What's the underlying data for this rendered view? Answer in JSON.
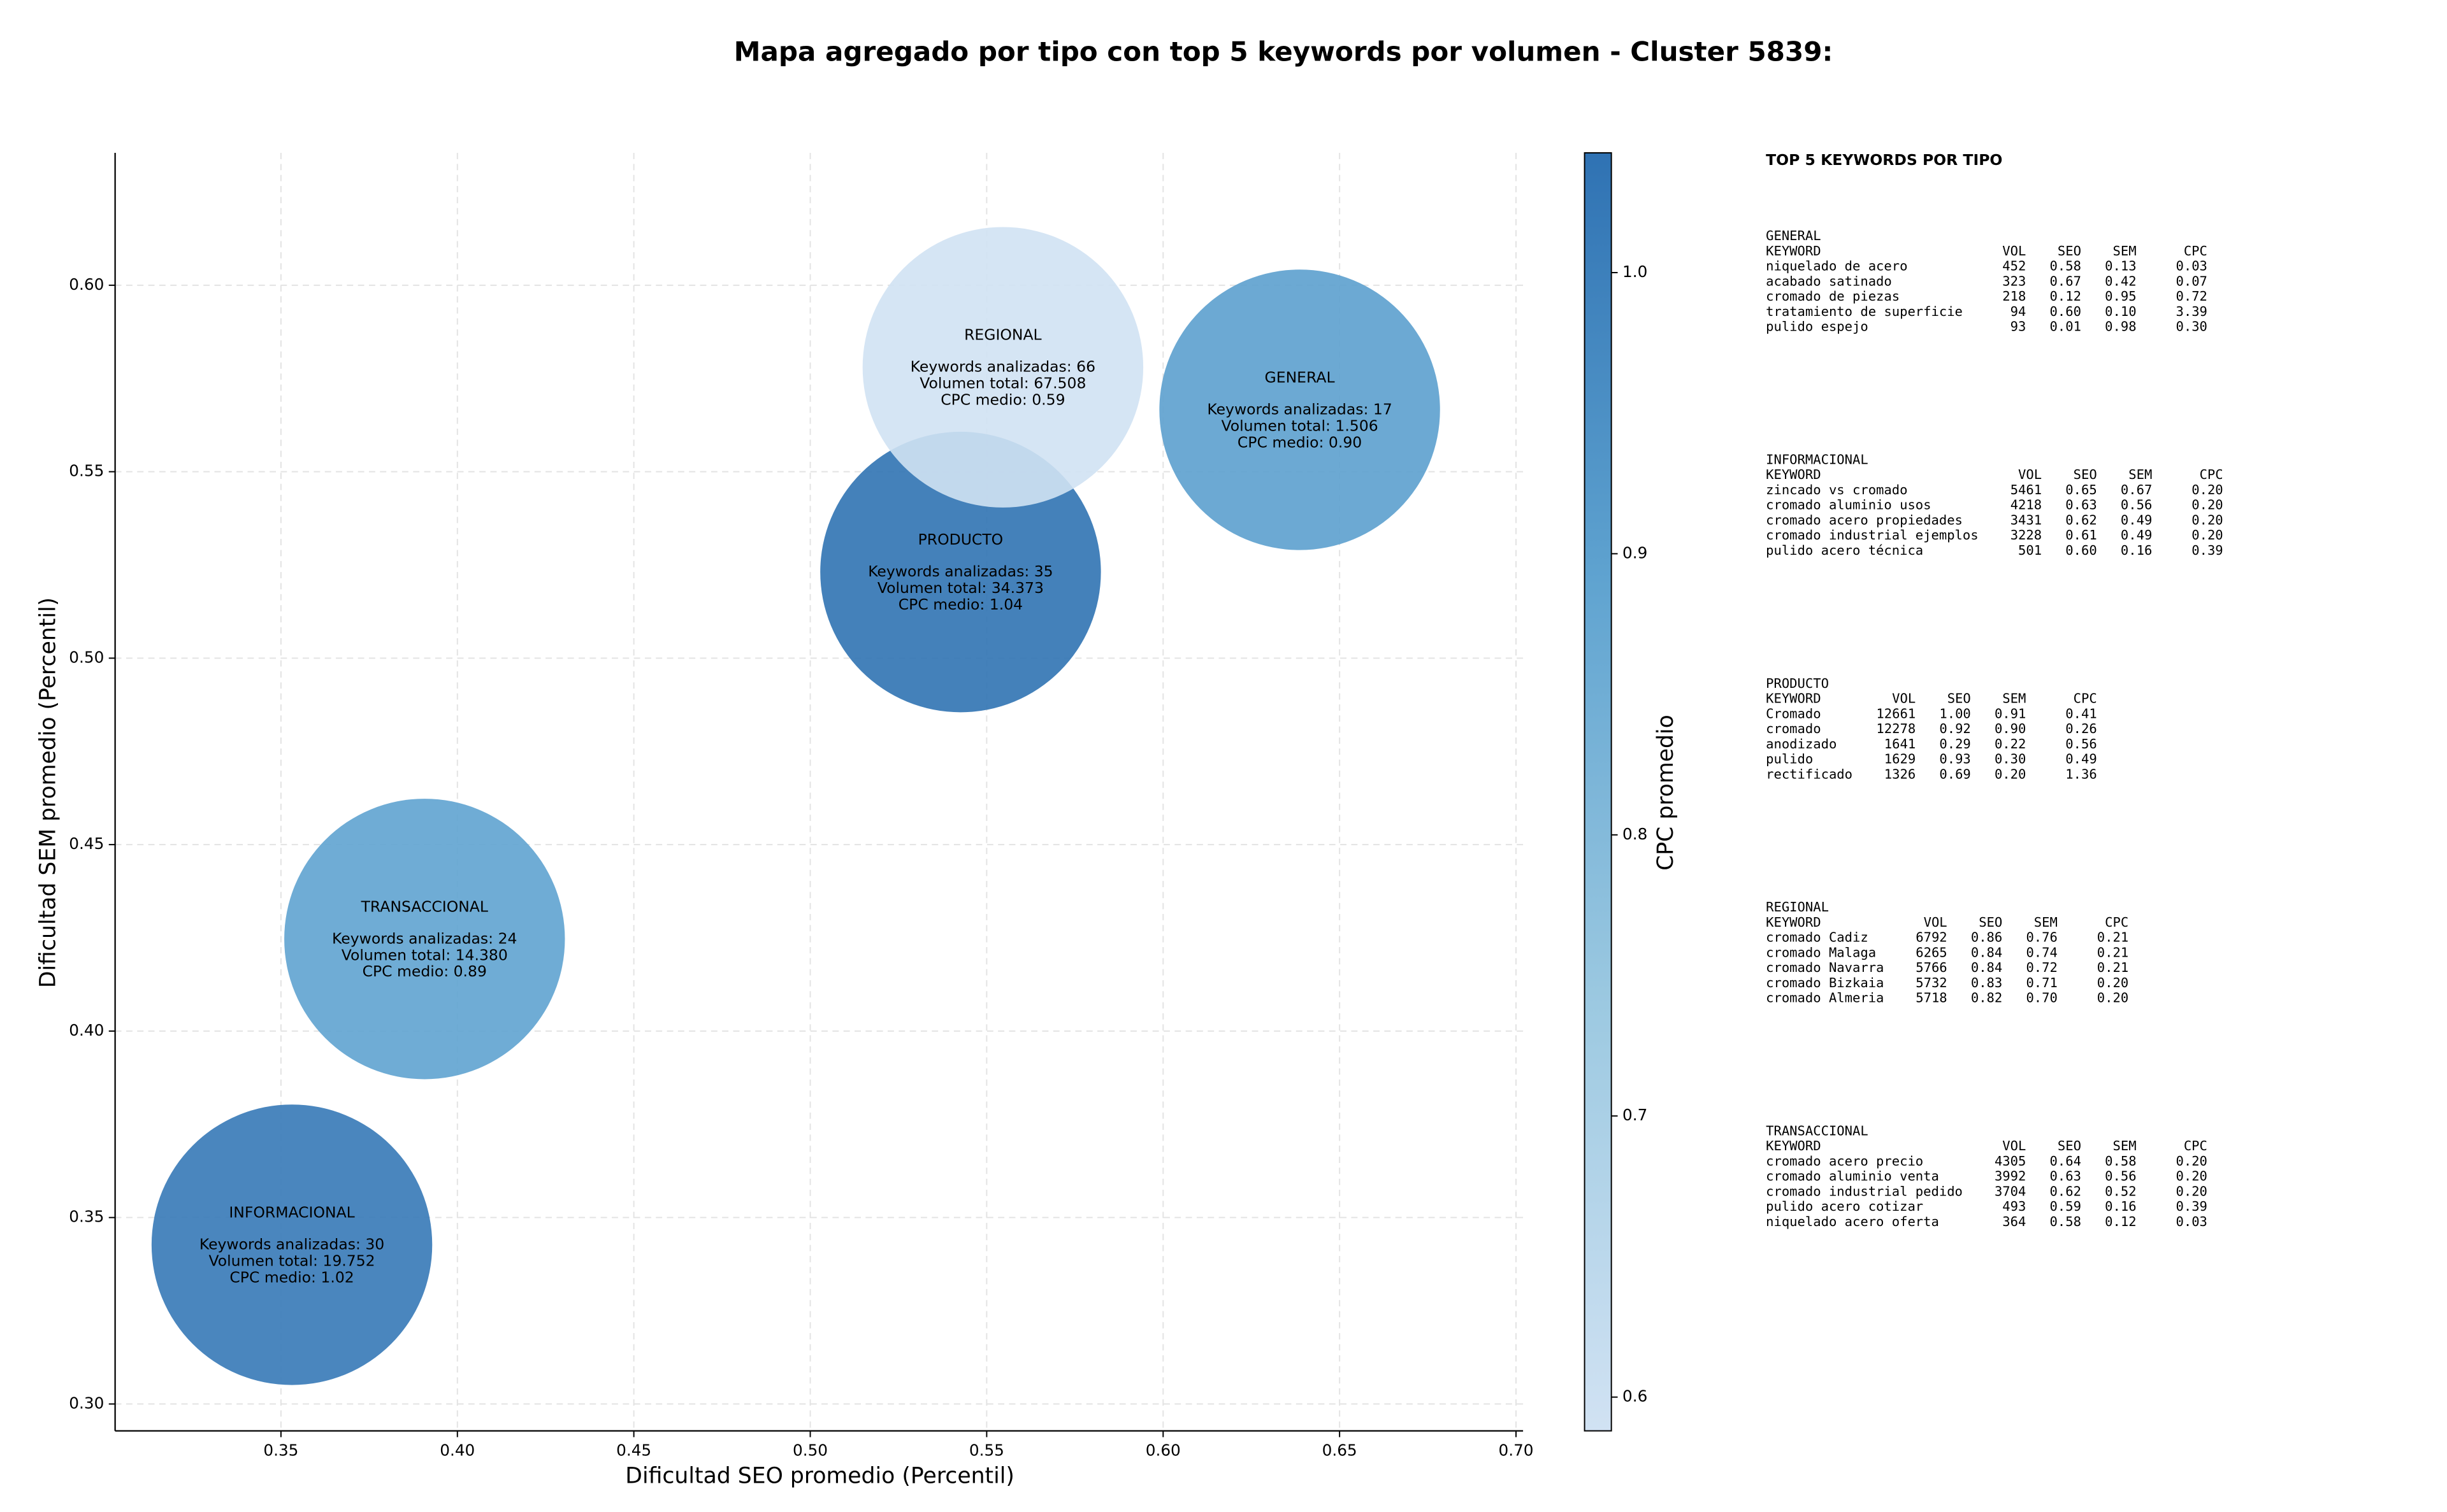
{
  "chart_data": {
    "type": "bubble",
    "title": "Mapa agregado por tipo con top 5 keywords por volumen - Cluster 5839:",
    "x_label": "Dificultad SEO promedio (Percentil)",
    "y_label": "Dificultad SEM promedio (Percentil)",
    "colorbar_label": "CPC promedio",
    "categories": [
      "GENERAL",
      "INFORMACIONAL",
      "PRODUCTO",
      "REGIONAL",
      "TRANSACCIONAL"
    ],
    "x": [
      0.6387,
      0.3531,
      0.5426,
      0.5546,
      0.3907
    ],
    "y": [
      0.5666,
      0.3427,
      0.5231,
      0.578,
      0.4247
    ],
    "keywords_prefix": "Keywords analizadas: ",
    "keywords": [
      17,
      30,
      35,
      66,
      24
    ],
    "volume_prefix": "Volumen total: ",
    "volumes": [
      1506,
      19752,
      34373,
      67508,
      14380
    ],
    "volume_labels": [
      "1.506",
      "19.752",
      "34.373",
      "67.508",
      "14.380"
    ],
    "cpc_prefix": "CPC medio: ",
    "color_values": [
      0.9,
      1.02,
      1.04,
      0.59,
      0.89
    ],
    "color_value_labels": [
      "0.90",
      "1.02",
      "1.04",
      "0.59",
      "0.89"
    ],
    "colormap": [
      "#d1e2f3",
      "#9cc9e1",
      "#5fa3d0",
      "#2f72b3"
    ],
    "xlim": [
      0.303,
      0.702
    ],
    "ylim": [
      0.2928,
      0.6355
    ],
    "clim": [
      0.588,
      1.0426
    ],
    "xticks": [
      0.35,
      {
        "value": 0.4,
        "label": "0.40"
      },
      0.45,
      {
        "value": 0.5,
        "label": "0.50"
      },
      0.55,
      {
        "value": 0.6,
        "label": "0.60"
      },
      0.65,
      {
        "value": 0.7,
        "label": "0.70"
      }
    ],
    "yticks": [
      {
        "value": 0.3,
        "label": "0.30"
      },
      0.35,
      {
        "value": 0.4,
        "label": "0.40"
      },
      0.45,
      {
        "value": 0.5,
        "label": "0.50"
      },
      0.55,
      {
        "value": 0.6,
        "label": "0.60"
      }
    ],
    "cticks": [
      0.6,
      0.7,
      0.8,
      0.9,
      {
        "value": 1,
        "label": "1.0"
      }
    ],
    "grid": true
  },
  "side_panel": {
    "title": "TOP 5 KEYWORDS POR TIPO",
    "columns": [
      "KEYWORD",
      "VOL",
      "SEO",
      "SEM",
      "CPC"
    ],
    "groups": [
      {
        "name": "GENERAL",
        "rows": [
          [
            "niquelado de acero",
            "452",
            "0.58",
            "0.13",
            "0.03"
          ],
          [
            "acabado satinado",
            "323",
            "0.67",
            "0.42",
            "0.07"
          ],
          [
            "cromado de piezas",
            "218",
            "0.12",
            "0.95",
            "0.72"
          ],
          [
            "tratamiento de superficie",
            "94",
            "0.60",
            "0.10",
            "3.39"
          ],
          [
            "pulido espejo",
            "93",
            "0.01",
            "0.98",
            "0.30"
          ]
        ]
      },
      {
        "name": "INFORMACIONAL",
        "rows": [
          [
            "zincado vs cromado",
            "5461",
            "0.65",
            "0.67",
            "0.20"
          ],
          [
            "cromado aluminio usos",
            "4218",
            "0.63",
            "0.56",
            "0.20"
          ],
          [
            "cromado acero propiedades",
            "3431",
            "0.62",
            "0.49",
            "0.20"
          ],
          [
            "cromado industrial ejemplos",
            "3228",
            "0.61",
            "0.49",
            "0.20"
          ],
          [
            "pulido acero técnica",
            "501",
            "0.60",
            "0.16",
            "0.39"
          ]
        ]
      },
      {
        "name": "PRODUCTO",
        "rows": [
          [
            "Cromado",
            "12661",
            "1.00",
            "0.91",
            "0.41"
          ],
          [
            "cromado",
            "12278",
            "0.92",
            "0.90",
            "0.26"
          ],
          [
            "anodizado",
            "1641",
            "0.29",
            "0.22",
            "0.56"
          ],
          [
            "pulido",
            "1629",
            "0.93",
            "0.30",
            "0.49"
          ],
          [
            "rectificado",
            "1326",
            "0.69",
            "0.20",
            "1.36"
          ]
        ]
      },
      {
        "name": "REGIONAL",
        "rows": [
          [
            "cromado Cadiz",
            "6792",
            "0.86",
            "0.76",
            "0.21"
          ],
          [
            "cromado Malaga",
            "6265",
            "0.84",
            "0.74",
            "0.21"
          ],
          [
            "cromado Navarra",
            "5766",
            "0.84",
            "0.72",
            "0.21"
          ],
          [
            "cromado Bizkaia",
            "5732",
            "0.83",
            "0.71",
            "0.20"
          ],
          [
            "cromado Almeria",
            "5718",
            "0.82",
            "0.70",
            "0.20"
          ]
        ]
      },
      {
        "name": "TRANSACCIONAL",
        "rows": [
          [
            "cromado acero precio",
            "4305",
            "0.64",
            "0.58",
            "0.20"
          ],
          [
            "cromado aluminio venta",
            "3992",
            "0.63",
            "0.56",
            "0.20"
          ],
          [
            "cromado industrial pedido",
            "3704",
            "0.62",
            "0.52",
            "0.20"
          ],
          [
            "pulido acero cotizar",
            "493",
            "0.59",
            "0.16",
            "0.39"
          ],
          [
            "niquelado acero oferta",
            "364",
            "0.58",
            "0.12",
            "0.03"
          ]
        ]
      }
    ]
  }
}
